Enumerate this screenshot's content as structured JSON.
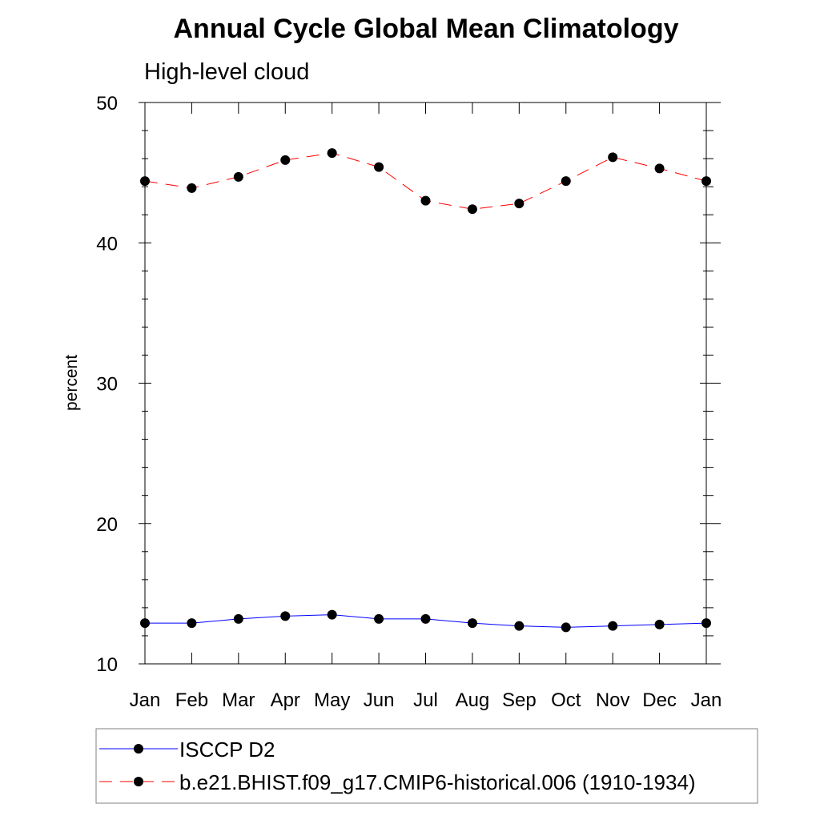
{
  "chart_data": {
    "type": "line",
    "title": "Annual Cycle Global Mean Climatology",
    "subtitle": "High-level cloud",
    "ylabel": "percent",
    "xlabel": "",
    "categories": [
      "Jan",
      "Feb",
      "Mar",
      "Apr",
      "May",
      "Jun",
      "Jul",
      "Aug",
      "Sep",
      "Oct",
      "Nov",
      "Dec",
      "Jan"
    ],
    "ylim": [
      10,
      50
    ],
    "yticks": [
      10,
      20,
      30,
      40,
      50
    ],
    "yminor_step": 2,
    "grid": false,
    "legend_position": "bottom",
    "series": [
      {
        "name": "ISCCP D2",
        "color": "#0000ff",
        "dash": "solid",
        "marker": "filled-circle",
        "values": [
          12.9,
          12.9,
          13.2,
          13.4,
          13.5,
          13.2,
          13.2,
          12.9,
          12.7,
          12.6,
          12.7,
          12.8,
          12.9
        ]
      },
      {
        "name": "b.e21.BHIST.f09_g17.CMIP6-historical.006 (1910-1934)",
        "color": "#ff0000",
        "dash": "dashed",
        "marker": "filled-circle",
        "values": [
          44.4,
          43.9,
          44.7,
          45.9,
          46.4,
          45.4,
          43.0,
          42.4,
          42.8,
          44.4,
          46.1,
          45.3,
          44.4
        ]
      }
    ]
  }
}
